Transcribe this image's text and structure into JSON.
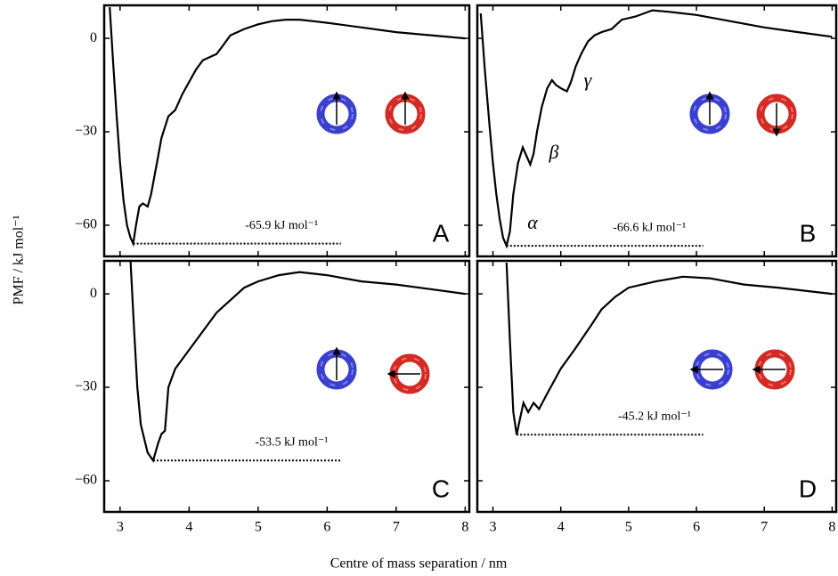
{
  "axes": {
    "xlabel": "Centre of mass separation / nm",
    "ylabel": "PMF / kJ mol⁻¹",
    "xlim": [
      2.77,
      8.06
    ],
    "ylim": [
      -70,
      10.6
    ],
    "xticks": [
      3,
      4,
      5,
      6,
      7,
      8
    ],
    "yticks": [
      0,
      {
        "value": -30,
        "label": "−30"
      },
      {
        "value": -60,
        "label": "−60"
      }
    ]
  },
  "chart_data": [
    {
      "type": "line",
      "panel_label": "A",
      "series": [
        {
          "color": "#000000",
          "x": [
            2.85,
            2.9,
            2.95,
            3.0,
            3.05,
            3.1,
            3.15,
            3.19,
            3.23,
            3.28,
            3.33,
            3.4,
            3.45,
            3.5,
            3.55,
            3.6,
            3.7,
            3.8,
            3.9,
            4.0,
            4.1,
            4.2,
            4.3,
            4.4,
            4.5,
            4.6,
            4.8,
            5.0,
            5.2,
            5.4,
            5.6,
            5.8,
            6.0,
            6.5,
            7.0,
            7.5,
            8.0
          ],
          "values": [
            10,
            -8,
            -25,
            -40,
            -52,
            -60,
            -64,
            -65.9,
            -60,
            -54,
            -53,
            -54,
            -50,
            -44,
            -38,
            -32,
            -25,
            -23,
            -18,
            -14,
            -10,
            -7,
            -6,
            -5,
            -2,
            1,
            3,
            4.5,
            5.5,
            6,
            6,
            5.5,
            5,
            3.5,
            2,
            1,
            0
          ]
        }
      ],
      "annotation": {
        "text": "-65.9 kJ mol⁻¹",
        "value": -65.9,
        "x": [
          3.19,
          6.2
        ]
      }
    },
    {
      "type": "line",
      "panel_label": "B",
      "series": [
        {
          "color": "#000000",
          "x": [
            2.82,
            2.88,
            2.95,
            3.0,
            3.05,
            3.1,
            3.15,
            3.2,
            3.25,
            3.3,
            3.37,
            3.44,
            3.5,
            3.55,
            3.6,
            3.65,
            3.72,
            3.8,
            3.87,
            3.93,
            4.0,
            4.09,
            4.15,
            4.22,
            4.3,
            4.4,
            4.5,
            4.6,
            4.75,
            4.9,
            5.1,
            5.35,
            5.6,
            6.0,
            6.5,
            7.0,
            7.5,
            8.0
          ],
          "values": [
            8,
            -10,
            -28,
            -40,
            -50,
            -58,
            -64,
            -66.6,
            -62,
            -50,
            -40,
            -35,
            -38,
            -40.5,
            -37,
            -30,
            -22,
            -16,
            -13.4,
            -15,
            -16,
            -17,
            -14,
            -9,
            -5,
            -1,
            1,
            2,
            3,
            6,
            7,
            9,
            8.5,
            7.5,
            5.5,
            3.5,
            2,
            0.5
          ]
        }
      ],
      "annotation": {
        "text": "-66.6 kJ mol⁻¹",
        "value": -66.6,
        "x": [
          3.2,
          6.1
        ]
      },
      "minima_labels": [
        "α",
        "β",
        "γ"
      ]
    },
    {
      "type": "line",
      "panel_label": "C",
      "series": [
        {
          "color": "#000000",
          "x": [
            3.15,
            3.2,
            3.25,
            3.3,
            3.4,
            3.48,
            3.55,
            3.6,
            3.65,
            3.7,
            3.8,
            4.0,
            4.2,
            4.4,
            4.6,
            4.8,
            5.0,
            5.3,
            5.6,
            6.0,
            6.5,
            7.0,
            7.5,
            8.0
          ],
          "values": [
            11,
            -10,
            -30,
            -42,
            -51,
            -53.5,
            -48,
            -45,
            -44,
            -30,
            -24,
            -18,
            -12,
            -6,
            -2,
            2,
            4,
            6,
            7,
            6,
            4,
            3,
            1.5,
            0
          ]
        }
      ],
      "annotation": {
        "text": "-53.5 kJ mol⁻¹",
        "value": -53.5,
        "x": [
          3.48,
          6.2
        ]
      }
    },
    {
      "type": "line",
      "panel_label": "D",
      "series": [
        {
          "color": "#000000",
          "x": [
            3.2,
            3.25,
            3.3,
            3.35,
            3.4,
            3.45,
            3.52,
            3.6,
            3.68,
            3.8,
            3.9,
            4.0,
            4.2,
            4.45,
            4.6,
            4.8,
            5.0,
            5.4,
            5.8,
            6.2,
            6.7,
            7.2,
            7.6,
            8.0
          ],
          "values": [
            10,
            -15,
            -38,
            -45.2,
            -40,
            -35,
            -38,
            -35,
            -37,
            -32,
            -28,
            -24,
            -18,
            -10,
            -5,
            -1,
            2,
            4,
            5.5,
            5,
            3,
            2,
            1,
            0
          ]
        }
      ],
      "annotation": {
        "text": "-45.2 kJ mol⁻¹",
        "value": -45.2,
        "x": [
          3.35,
          6.1
        ]
      }
    }
  ]
}
